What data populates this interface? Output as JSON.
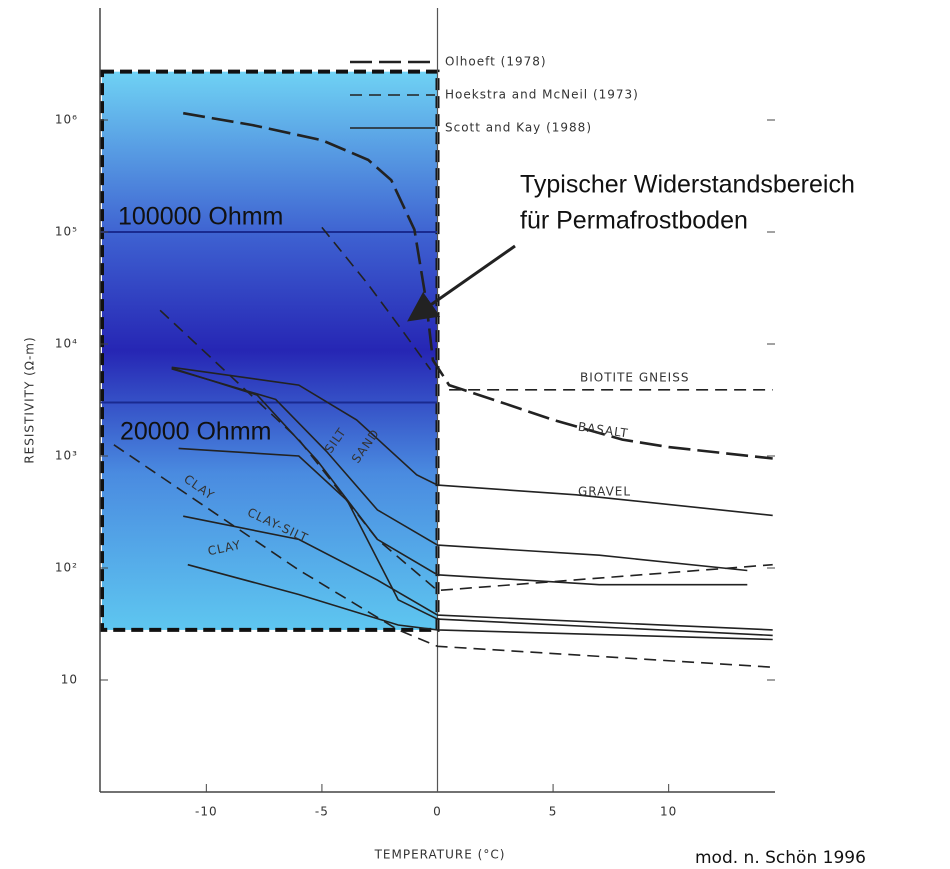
{
  "chart_data": {
    "type": "line",
    "y_scale": "log",
    "xlabel": "TEMPERATURE (°C)",
    "ylabel": "RESISTIVITY (Ω-m)",
    "xlim": [
      -14.6,
      14.6
    ],
    "xticks": [
      -10,
      -5,
      0,
      5,
      10
    ],
    "ylim": [
      1,
      10000000
    ],
    "yticks": [
      {
        "value": 1000000,
        "label": "10⁶"
      },
      {
        "value": 100000,
        "label": "10⁵"
      },
      {
        "value": 10000,
        "label": "10⁴"
      },
      {
        "value": 1000,
        "label": "10³"
      },
      {
        "value": 100,
        "label": "10²"
      },
      10
    ],
    "line_color": "#222222",
    "legend": [
      {
        "name": "Olhoeft (1978)",
        "dash": "long-dash"
      },
      {
        "name": "Hoekstra and McNeil (1973)",
        "dash": "dash"
      },
      {
        "name": "Scott and Kay (1988)",
        "dash": "solid"
      }
    ],
    "series": [
      {
        "label": "BASALT",
        "group": 0,
        "x": [
          -11,
          -8,
          -5,
          -3,
          -2,
          -1,
          -0.5,
          -0.2,
          0.5,
          3,
          5,
          8,
          10,
          14.5
        ],
        "values": [
          1150000,
          900000,
          660000,
          440000,
          290000,
          105000,
          25000,
          7200,
          4300,
          2900,
          2100,
          1400,
          1200,
          950
        ]
      },
      {
        "label": "BIOTITE GNEISS",
        "group": 1,
        "x": [
          0.5,
          14.5
        ],
        "values": [
          3900,
          3900
        ]
      },
      {
        "group": 1,
        "x": [
          -5,
          -3,
          -1.5,
          -0.3
        ],
        "values": [
          110000,
          34000,
          13000,
          5900
        ]
      },
      {
        "label": "GRAVEL",
        "group": 2,
        "x": [
          -11.5,
          -6,
          -3.5,
          -0.9,
          0,
          6,
          14.5
        ],
        "values": [
          6200,
          4300,
          2100,
          680,
          550,
          450,
          295
        ]
      },
      {
        "label": "SAND",
        "group": 2,
        "x": [
          -11.5,
          -7,
          -4.8,
          -2.6,
          0,
          7,
          13.4
        ],
        "values": [
          6000,
          3200,
          1100,
          330,
          160,
          130,
          95
        ]
      },
      {
        "label": "SILT",
        "group": 2,
        "x": [
          -11.5,
          -7.8,
          -5.2,
          -2.6,
          0,
          7,
          13.4
        ],
        "values": [
          6100,
          3500,
          910,
          180,
          87,
          71,
          71
        ]
      },
      {
        "group": 1,
        "x": [
          -12,
          -6,
          -2.6,
          0,
          14.5
        ],
        "values": [
          20000,
          1400,
          180,
          63,
          107
        ]
      },
      {
        "label": "CLAY",
        "group": 1,
        "x": [
          -14,
          -6,
          -1.7,
          0,
          14.5
        ],
        "values": [
          1260,
          96,
          28,
          20,
          13
        ]
      },
      {
        "label": "CLAY-SILT",
        "group": 2,
        "x": [
          -11,
          -6,
          -2.6,
          0,
          14.5
        ],
        "values": [
          290,
          180,
          78,
          38,
          28
        ]
      },
      {
        "label": "CLAY",
        "group": 2,
        "x": [
          -10.8,
          -6,
          -1.7,
          0,
          14.5
        ],
        "values": [
          107,
          58,
          31,
          28,
          23
        ]
      },
      {
        "group": 2,
        "x": [
          -11.2,
          -6,
          -3.9,
          -1.7,
          0,
          14.5
        ],
        "values": [
          1170,
          1000,
          400,
          52,
          35,
          25
        ]
      }
    ],
    "highlight": {
      "xlim": [
        -14.6,
        0
      ],
      "ylim": [
        28,
        2700000
      ]
    },
    "range_lines": [
      100000,
      3000
    ],
    "annotations": [
      "100000 Ohmm",
      "20000 Ohmm",
      "Typischer Widerstandsbereich",
      "für Permafrostboden"
    ],
    "source": "mod. n. Schön 1996"
  }
}
